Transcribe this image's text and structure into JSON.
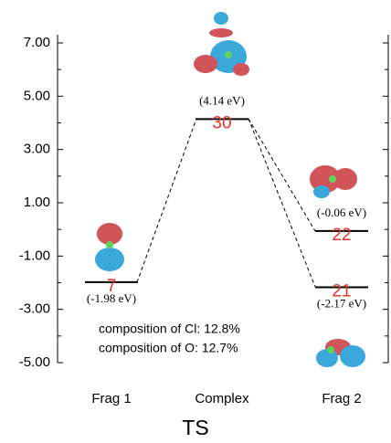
{
  "chart_data": {
    "type": "energy-level",
    "title": "TS",
    "series": [
      {
        "name": "Frag 1",
        "values": [
          -1.98
        ],
        "labels": [
          "7"
        ],
        "value_labels": [
          "(-1.98 eV)"
        ]
      },
      {
        "name": "Complex",
        "values": [
          4.14
        ],
        "labels": [
          "30"
        ],
        "value_labels": [
          "(4.14 eV)"
        ]
      },
      {
        "name": "Frag 2",
        "values": [
          -0.06,
          -2.17
        ],
        "labels": [
          "22",
          "21"
        ],
        "value_labels": [
          "(-0.06 eV)",
          "(-2.17 eV)"
        ]
      }
    ],
    "annotations": [
      "composition of Cl: 12.8%",
      "composition of O:  12.7%"
    ],
    "ylim": [
      -5,
      7.4
    ],
    "yticks": [
      {
        "value": 7,
        "label": "7.00"
      },
      {
        "value": 5,
        "label": "5.00"
      },
      {
        "value": 3,
        "label": "3.00"
      },
      {
        "value": 1,
        "label": "1.00"
      },
      {
        "value": -1,
        "label": "-1.00"
      },
      {
        "value": -3,
        "label": "-3.00"
      },
      {
        "value": -5,
        "label": "-5.00"
      }
    ],
    "minor_yticks": [
      6,
      4,
      2,
      0,
      -2,
      -4
    ],
    "level_color": "#000000"
  }
}
